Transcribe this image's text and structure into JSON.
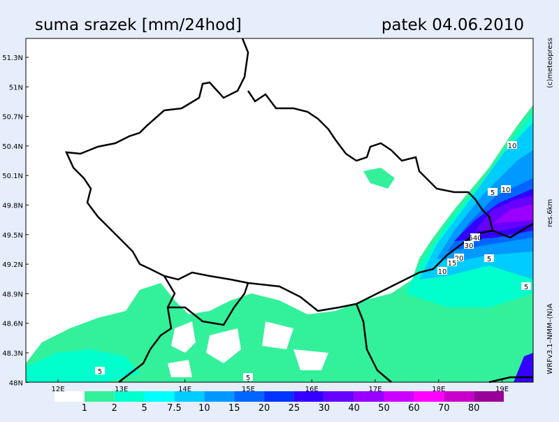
{
  "header": {
    "title": "suma srazek [mm/24hod]",
    "date": "patek 04.06.2010"
  },
  "side_labels": [
    "(c)meteopress",
    "res.6km",
    "WRFv3.1–NMM–(N)A"
  ],
  "lat_labels": [
    "51.3N",
    "51N",
    "50.7N",
    "50.4N",
    "50.1N",
    "49.8N",
    "49.5N",
    "49.2N",
    "48.9N",
    "48.6N",
    "48.3N",
    "48N"
  ],
  "lon_labels": [
    "12E",
    "13E",
    "14E",
    "15E",
    "16E",
    "17E",
    "18E",
    "19E"
  ],
  "legend": {
    "labels": [
      "1",
      "2",
      "5",
      "7.5",
      "10",
      "15",
      "20",
      "25",
      "30",
      "40",
      "50",
      "60",
      "70",
      "80"
    ],
    "colors": [
      "#ffffff",
      "#33f09a",
      "#00ffcc",
      "#00ffff",
      "#00ccff",
      "#0099ff",
      "#0066ff",
      "#0033ff",
      "#3300ff",
      "#6600ff",
      "#9900ff",
      "#cc00ff",
      "#ff00ff",
      "#cc00cc",
      "#990099"
    ]
  },
  "contour_labels": [
    "10",
    "5",
    "10",
    "540",
    "30",
    "20",
    "15",
    "10",
    "5",
    "5",
    "5",
    "5"
  ]
}
